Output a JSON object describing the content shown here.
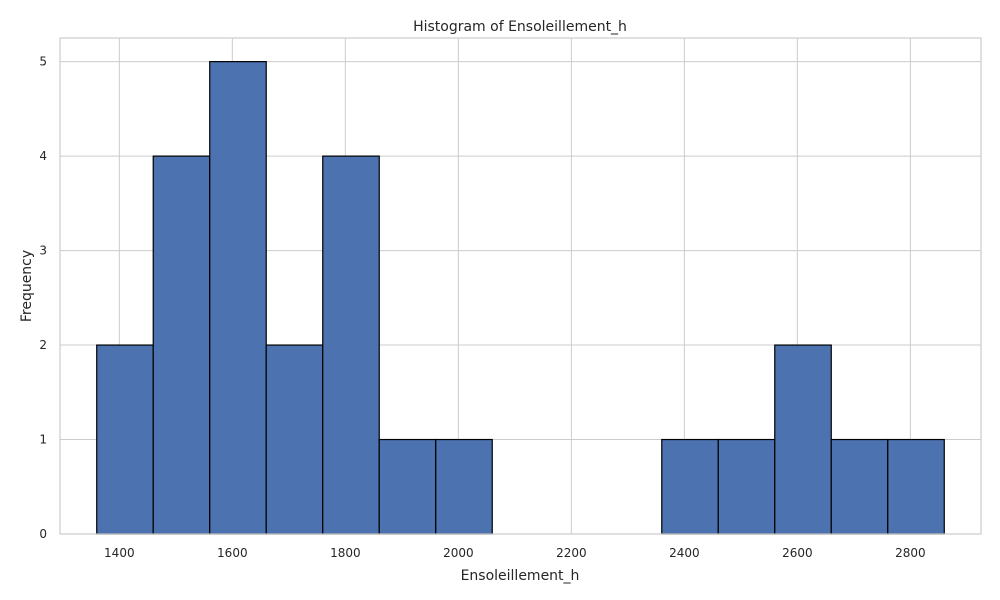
{
  "chart_data": {
    "type": "bar",
    "title": "Histogram of Ensoleillement_h",
    "xlabel": "Ensoleillement_h",
    "ylabel": "Frequency",
    "bin_edges": [
      1360,
      1460,
      1560,
      1660,
      1760,
      1860,
      1960,
      2060,
      2160,
      2260,
      2360,
      2460,
      2560,
      2660,
      2760,
      2860
    ],
    "counts": [
      2,
      4,
      5,
      2,
      4,
      1,
      1,
      0,
      0,
      0,
      1,
      1,
      2,
      1,
      1
    ],
    "xlim": [
      1295,
      2925
    ],
    "ylim": [
      0,
      5.25
    ],
    "xticks": [
      1400,
      1600,
      1800,
      2000,
      2200,
      2400,
      2600,
      2800
    ],
    "yticks": [
      0,
      1,
      2,
      3,
      4,
      5
    ],
    "grid": true,
    "bar_color": "#4c72b0",
    "edge_color": "#000000"
  }
}
